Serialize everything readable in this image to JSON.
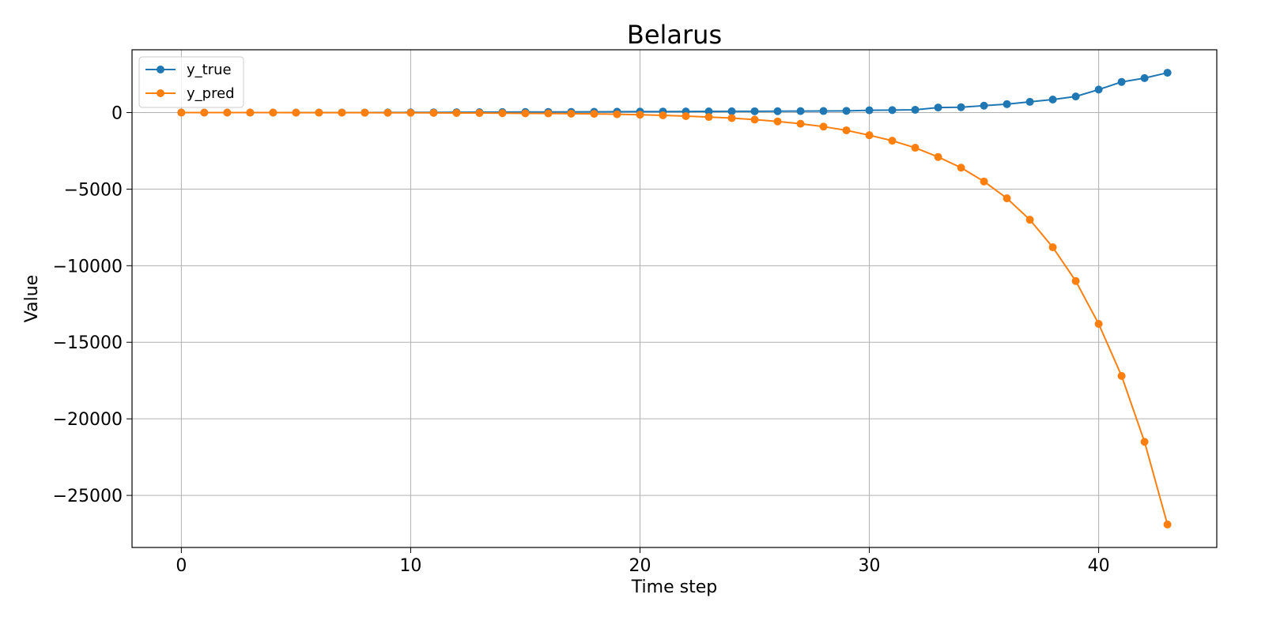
{
  "chart_data": {
    "type": "line",
    "title": "Belarus",
    "xlabel": "Time step",
    "ylabel": "Value",
    "xlim": [
      -2.15,
      45.15
    ],
    "ylim": [
      -28400,
      4100
    ],
    "xticks": [
      0,
      10,
      20,
      30,
      40
    ],
    "yticks": [
      0,
      -5000,
      -10000,
      -15000,
      -20000,
      -25000
    ],
    "ytick_labels": [
      "0",
      "−5000",
      "−10000",
      "−15000",
      "−20000",
      "−25000"
    ],
    "grid": true,
    "legend_position": "top-left",
    "x": [
      0,
      1,
      2,
      3,
      4,
      5,
      6,
      7,
      8,
      9,
      10,
      11,
      12,
      13,
      14,
      15,
      16,
      17,
      18,
      19,
      20,
      21,
      22,
      23,
      24,
      25,
      26,
      27,
      28,
      29,
      30,
      31,
      32,
      33,
      34,
      35,
      36,
      37,
      38,
      39,
      40,
      41,
      42,
      43
    ],
    "series": [
      {
        "name": "y_true",
        "color": "#1f77b4",
        "values": [
          0,
          0,
          0,
          0,
          0,
          0,
          0,
          1,
          2,
          4,
          9,
          15,
          20,
          25,
          30,
          35,
          40,
          45,
          50,
          55,
          60,
          65,
          70,
          75,
          80,
          85,
          90,
          95,
          100,
          110,
          150,
          160,
          180,
          330,
          350,
          450,
          550,
          700,
          850,
          1050,
          1500,
          2000,
          2250,
          2600
        ]
      },
      {
        "name": "y_pred",
        "color": "#ff7f0e",
        "values": [
          0,
          -1,
          -2,
          -3,
          -4,
          -5,
          -6,
          -8,
          -10,
          -12,
          -15,
          -20,
          -25,
          -30,
          -40,
          -50,
          -60,
          -70,
          -85,
          -110,
          -140,
          -180,
          -230,
          -290,
          -360,
          -460,
          -580,
          -730,
          -920,
          -1160,
          -1480,
          -1840,
          -2300,
          -2900,
          -3600,
          -4500,
          -5600,
          -7000,
          -8800,
          -11000,
          -13800,
          -17200,
          -21500,
          -26900
        ]
      }
    ]
  }
}
